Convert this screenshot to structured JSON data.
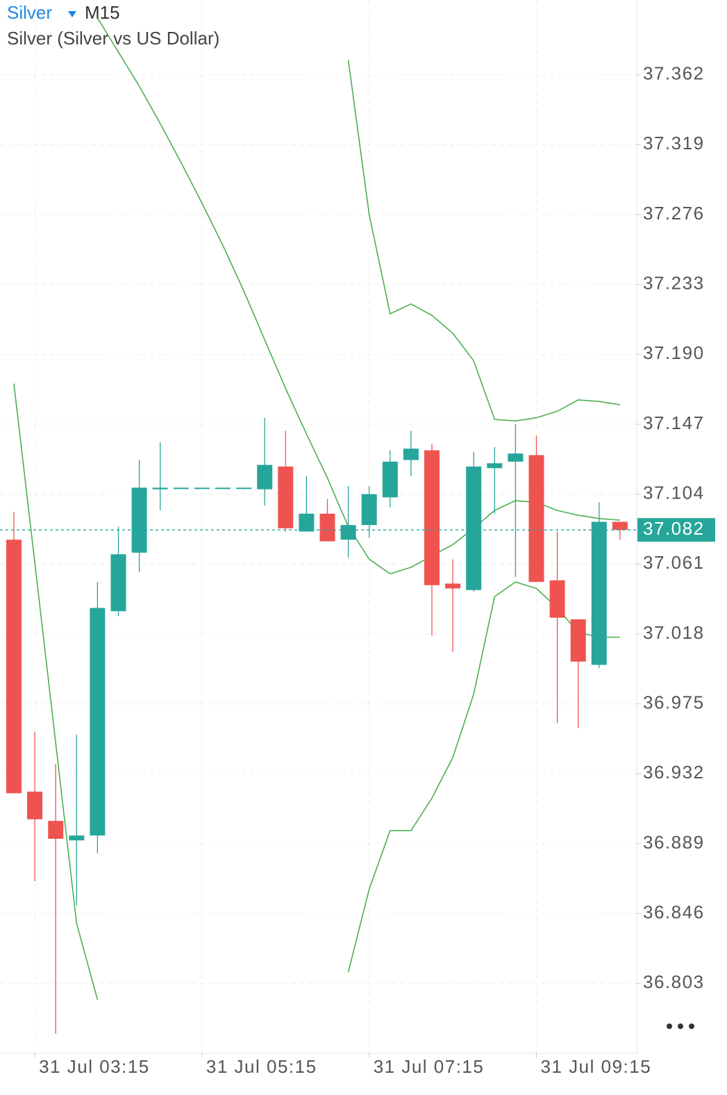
{
  "chart_data": {
    "type": "candlestick",
    "title": "Silver",
    "timeframe": "M15",
    "subtitle": "Silver (Silver vs US Dollar)",
    "categories": [
      null,
      "31 Jul 03:15",
      null,
      null,
      null,
      null,
      null,
      null,
      null,
      "31 Jul 05:15",
      null,
      null,
      null,
      null,
      null,
      null,
      null,
      "31 Jul 07:15",
      null,
      null,
      null,
      null,
      null,
      null,
      null,
      "31 Jul 09:15",
      null,
      null,
      null,
      null
    ],
    "open": [
      37.076,
      36.921,
      36.903,
      36.891,
      36.894,
      37.032,
      37.068,
      37.107,
      37.108,
      37.108,
      37.108,
      37.108,
      37.107,
      37.121,
      37.081,
      37.092,
      37.076,
      37.085,
      37.102,
      37.125,
      37.131,
      37.049,
      37.045,
      37.12,
      37.124,
      37.128,
      37.051,
      37.027,
      36.999,
      37.087
    ],
    "high": [
      37.093,
      36.958,
      36.938,
      36.956,
      37.05,
      37.084,
      37.125,
      37.136,
      37.108,
      37.108,
      37.108,
      37.108,
      37.151,
      37.143,
      37.115,
      37.101,
      37.109,
      37.109,
      37.131,
      37.143,
      37.135,
      37.064,
      37.13,
      37.133,
      37.147,
      37.14,
      37.081,
      37.027,
      37.099,
      37.087
    ],
    "low": [
      36.92,
      36.866,
      36.772,
      36.851,
      36.883,
      37.029,
      37.056,
      37.094,
      37.108,
      37.108,
      37.108,
      37.108,
      37.097,
      37.081,
      37.081,
      37.075,
      37.065,
      37.077,
      37.096,
      37.115,
      37.017,
      37.007,
      37.044,
      37.092,
      37.053,
      37.05,
      36.963,
      36.96,
      36.997,
      37.076
    ],
    "close": [
      36.92,
      36.904,
      36.892,
      36.894,
      37.034,
      37.067,
      37.108,
      37.108,
      37.108,
      37.108,
      37.108,
      37.108,
      37.122,
      37.083,
      37.092,
      37.075,
      37.085,
      37.104,
      37.124,
      37.132,
      37.048,
      37.046,
      37.121,
      37.123,
      37.129,
      37.05,
      37.028,
      37.001,
      37.087,
      37.082
    ],
    "up_color": "#26a69a",
    "down_color": "#ef5350",
    "bands": [
      {
        "color": "#4caf50",
        "values": [
          null,
          null,
          null,
          null,
          null,
          null,
          null,
          null,
          null,
          null,
          null,
          null,
          null,
          null,
          null,
          null,
          37.371,
          37.276,
          37.215,
          37.221,
          37.214,
          37.203,
          37.186,
          37.15,
          37.149,
          37.151,
          37.155,
          37.162,
          37.161,
          37.159
        ]
      },
      {
        "color": "#4caf50",
        "values": [
          null,
          null,
          null,
          null,
          37.397,
          37.376,
          37.355,
          37.332,
          37.308,
          37.283,
          37.257,
          37.229,
          37.199,
          37.169,
          37.141,
          37.114,
          37.084,
          37.064,
          37.055,
          37.059,
          37.066,
          37.073,
          37.083,
          37.094,
          37.1,
          37.099,
          37.094,
          37.091,
          37.089,
          37.088
        ]
      },
      {
        "color": "#4caf50",
        "values": [
          37.172,
          37.062,
          36.951,
          36.84,
          36.793,
          null,
          null,
          null,
          null,
          null,
          null,
          null,
          null,
          null,
          null,
          null,
          36.81,
          36.861,
          36.897,
          36.897,
          36.917,
          36.942,
          36.981,
          37.041,
          37.05,
          37.046,
          37.034,
          37.019,
          37.016,
          37.016
        ]
      }
    ],
    "last_price": 37.082,
    "ylim": [
      36.76,
      37.408
    ],
    "yticks": [
      37.362,
      37.319,
      37.276,
      37.233,
      {
        "value": 37.19,
        "label": "37.190"
      },
      37.147,
      37.104,
      37.061,
      37.018,
      36.975,
      36.932,
      36.889,
      36.846,
      36.803
    ],
    "grid": true
  }
}
